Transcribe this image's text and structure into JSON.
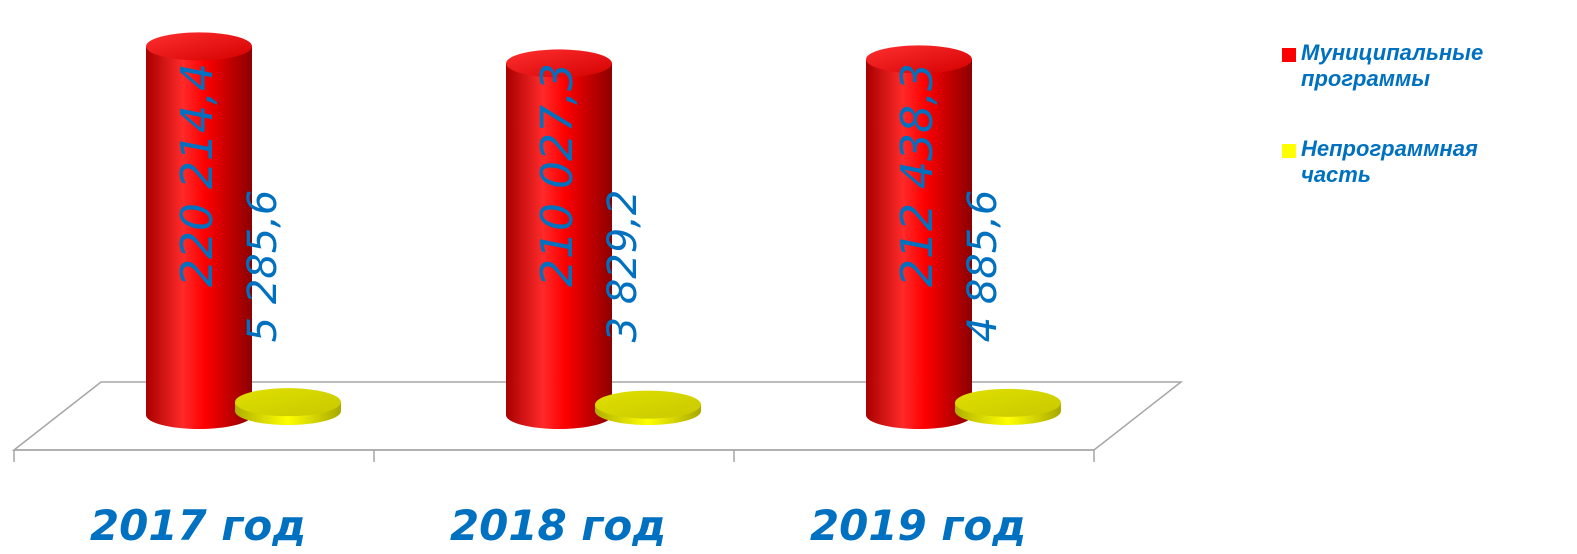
{
  "chart_data": {
    "type": "bar",
    "style": "3d-cylinder",
    "categories": [
      "2017 год",
      "2018 год",
      "2019 год"
    ],
    "series": [
      {
        "name": "Муниципальные программы",
        "color": "#ff0000",
        "values": [
          220214.4,
          210027.3,
          212438.3
        ],
        "value_labels": [
          "220 214,4",
          "210 027,3",
          "212 438,3"
        ]
      },
      {
        "name": "Непрограммная часть",
        "color": "#ffff00",
        "values": [
          5285.6,
          3829.2,
          4885.6
        ],
        "value_labels": [
          "5 285,6",
          "3 829,2",
          "4 885,6"
        ]
      }
    ],
    "ylim": [
      0,
      230000
    ],
    "grid": false,
    "legend_position": "top-right",
    "label_color": "#0070c0"
  },
  "legend": {
    "items": [
      {
        "line1": "Муниципальные",
        "line2": "программы",
        "color": "#ff0000"
      },
      {
        "line1": "Непрограммная",
        "line2": "часть",
        "color": "#ffff00"
      }
    ]
  }
}
